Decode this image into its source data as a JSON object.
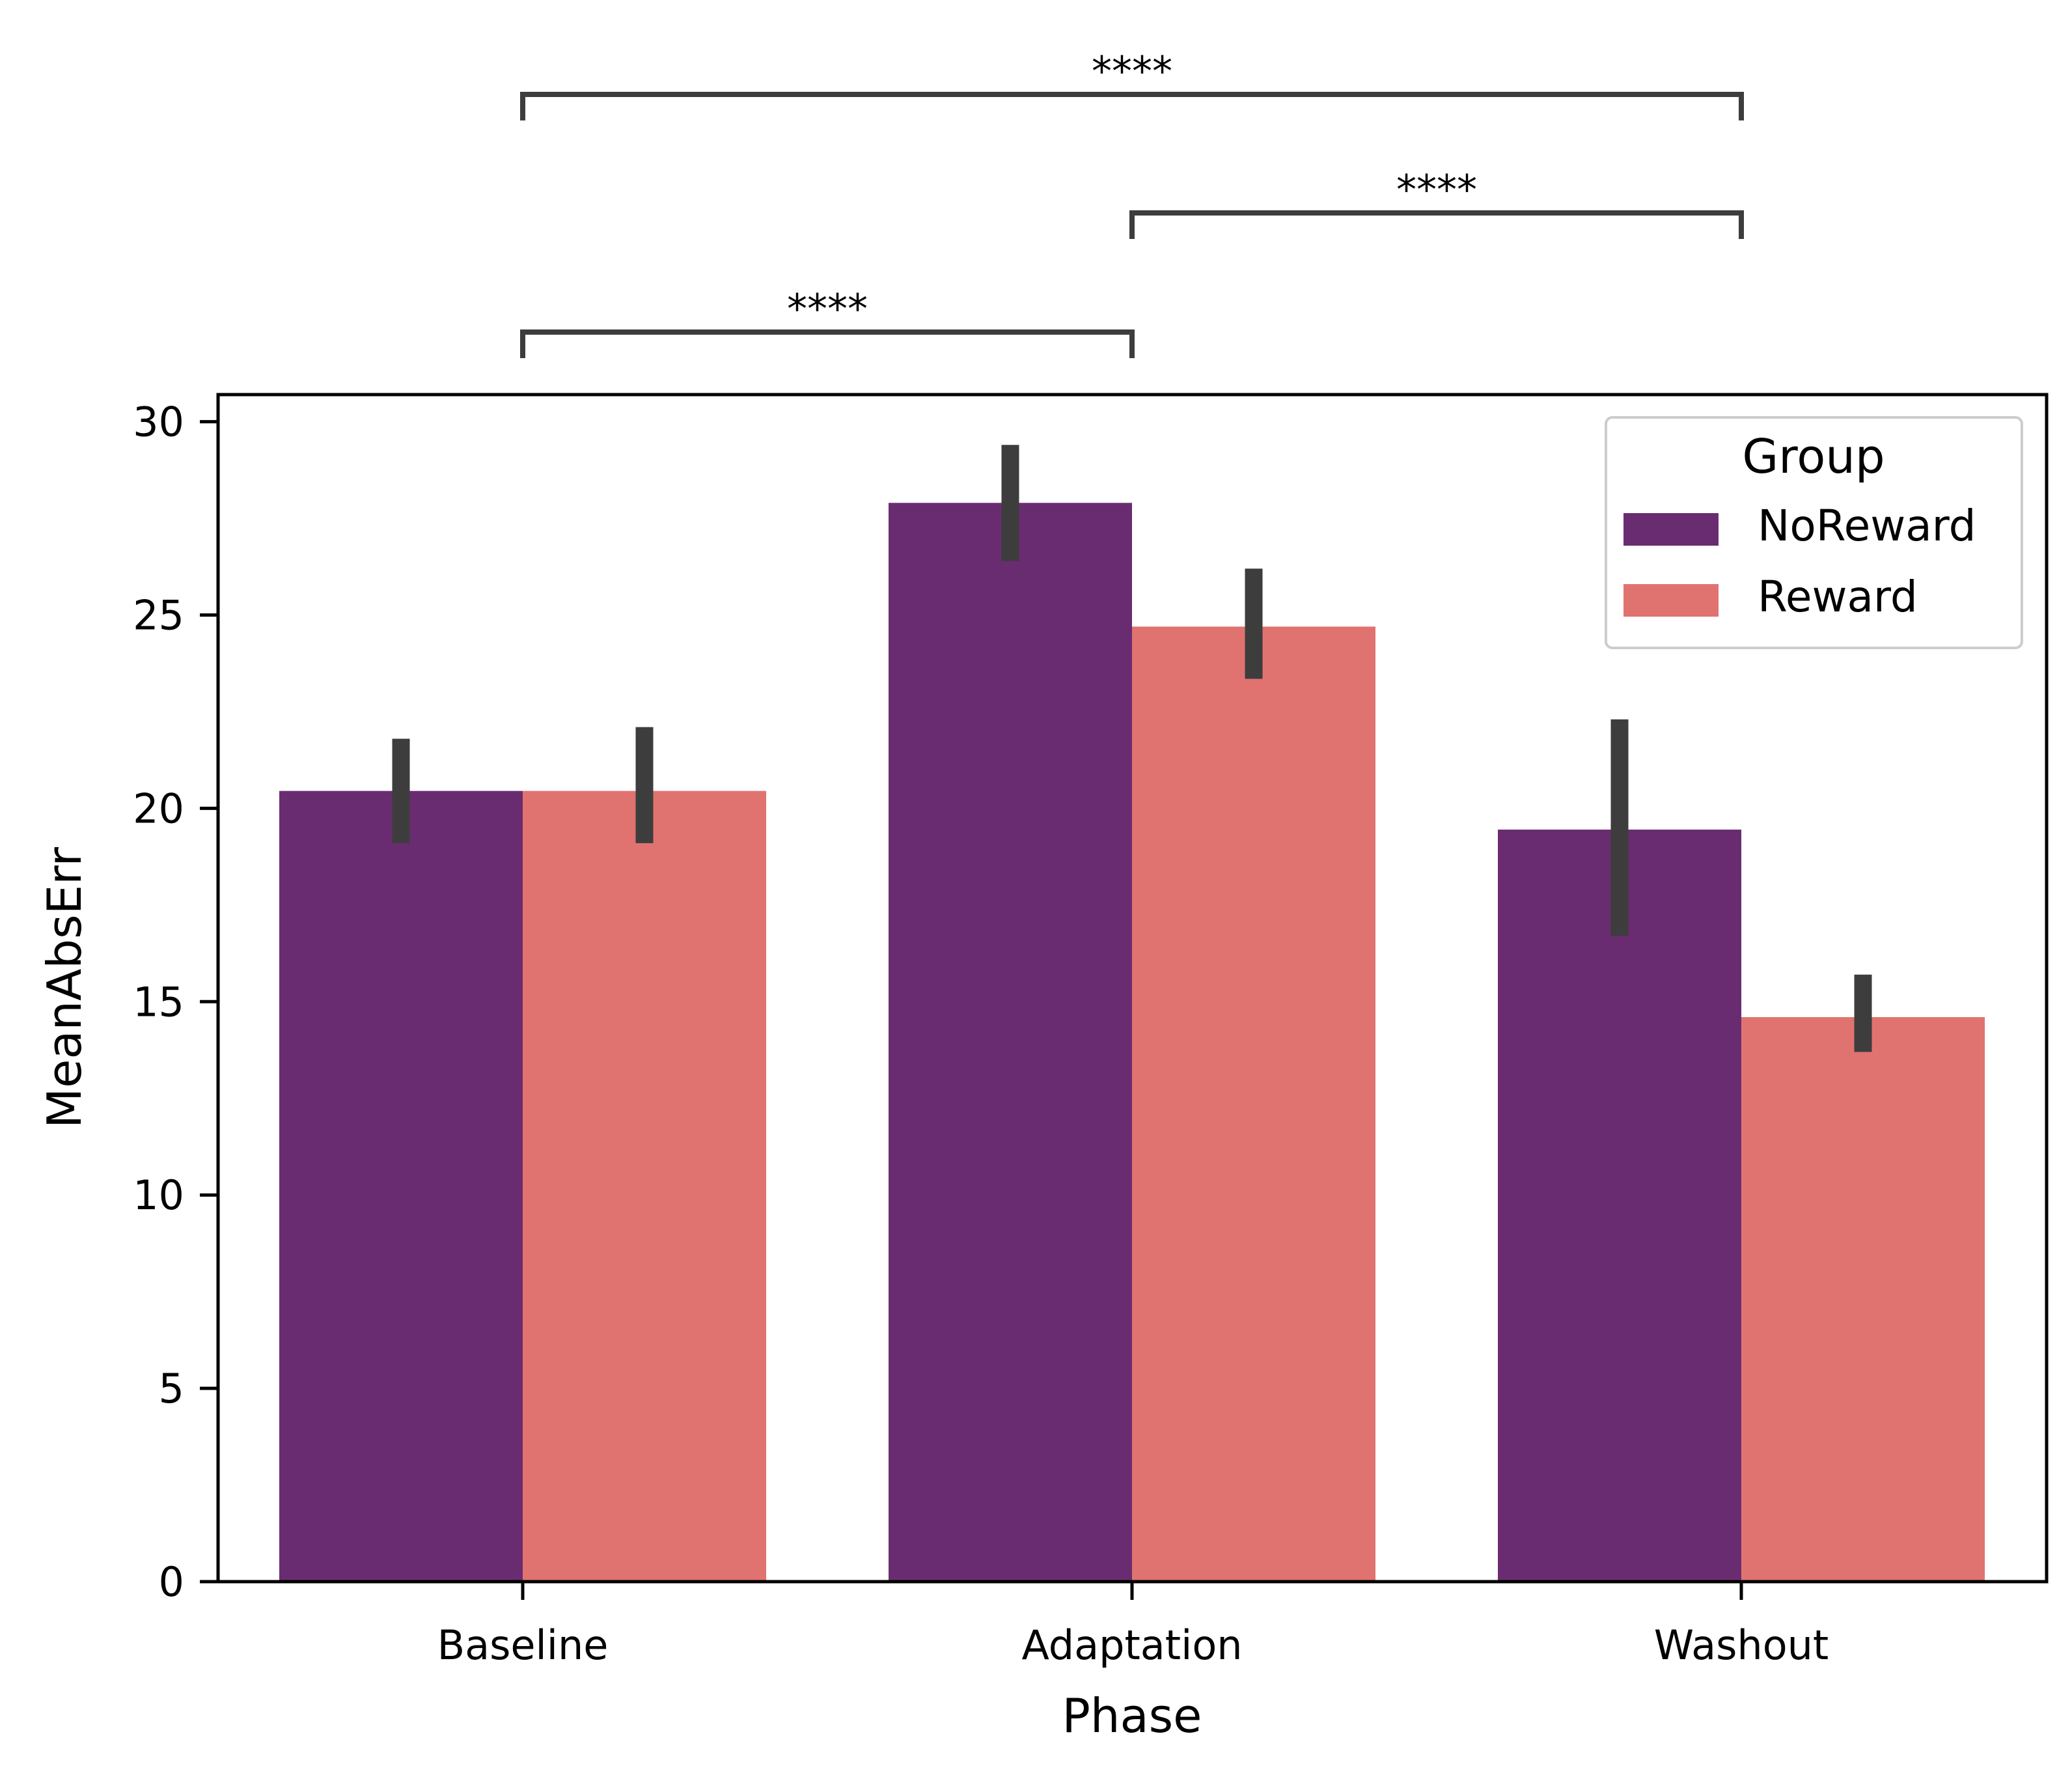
{
  "chart_data": {
    "type": "bar",
    "xlabel": "Phase",
    "ylabel": "MeanAbsErr",
    "categories": [
      "Baseline",
      "Adaptation",
      "Washout"
    ],
    "ylim": [
      0,
      30.7
    ],
    "yticks": [
      0,
      5,
      10,
      15,
      20,
      25,
      30
    ],
    "grid": false,
    "legend": {
      "title": "Group",
      "position": "top-right"
    },
    "series": [
      {
        "name": "NoReward",
        "color": "#6a2c70",
        "values": [
          20.45,
          27.9,
          19.45
        ],
        "error_low": [
          19.1,
          26.4,
          16.7
        ],
        "error_high": [
          21.8,
          29.4,
          22.3
        ]
      },
      {
        "name": "Reward",
        "color": "#e07370",
        "values": [
          20.45,
          24.7,
          14.6
        ],
        "error_low": [
          19.1,
          23.35,
          13.7
        ],
        "error_high": [
          22.1,
          26.2,
          15.7
        ]
      }
    ],
    "annotations": [
      {
        "from": "Baseline",
        "to": "Washout",
        "text": "****"
      },
      {
        "from": "Adaptation",
        "to": "Washout",
        "text": "****"
      },
      {
        "from": "Baseline",
        "to": "Adaptation",
        "text": "****"
      }
    ]
  }
}
